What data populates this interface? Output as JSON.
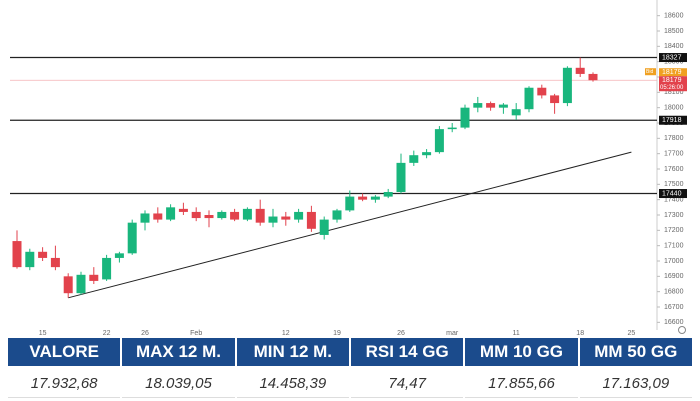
{
  "chart_data": {
    "type": "candlestick",
    "categories": [
      null,
      null,
      "15",
      null,
      null,
      null,
      null,
      "22",
      null,
      null,
      "26",
      null,
      null,
      null,
      "Feb",
      null,
      null,
      null,
      null,
      null,
      null,
      "12",
      null,
      null,
      null,
      "19",
      null,
      null,
      null,
      null,
      "26",
      null,
      null,
      null,
      "mar",
      null,
      null,
      null,
      null,
      "11",
      null,
      null,
      null,
      null,
      "18",
      null,
      null,
      null,
      "25",
      null
    ],
    "open": [
      17130,
      16960,
      17060,
      17020,
      16900,
      16790,
      16910,
      16880,
      17020,
      17050,
      17250,
      17310,
      17270,
      17340,
      17320,
      17300,
      17280,
      17320,
      17270,
      17340,
      17250,
      17290,
      17270,
      17320,
      17170,
      17270,
      17330,
      17420,
      17400,
      17420,
      17450,
      17640,
      17690,
      17710,
      17860,
      17870,
      18000,
      18030,
      18000,
      17950,
      17990,
      18130,
      18080,
      18030,
      18260,
      18220,
      null,
      null,
      null,
      null
    ],
    "high": [
      17200,
      17080,
      17090,
      17100,
      16920,
      16930,
      16960,
      17040,
      17060,
      17270,
      17330,
      17350,
      17370,
      17380,
      17350,
      17330,
      17330,
      17340,
      17350,
      17400,
      17340,
      17320,
      17340,
      17360,
      17290,
      17340,
      17460,
      17440,
      17430,
      17470,
      17700,
      17720,
      17730,
      17880,
      17900,
      18020,
      18070,
      18040,
      18030,
      18030,
      18140,
      18150,
      18090,
      18270,
      18327,
      18230,
      null,
      null,
      null,
      null
    ],
    "low": [
      16950,
      16940,
      17000,
      16940,
      16760,
      16780,
      16850,
      16870,
      16990,
      17040,
      17200,
      17250,
      17260,
      17300,
      17260,
      17220,
      17270,
      17260,
      17260,
      17230,
      17220,
      17230,
      17250,
      17190,
      17140,
      17250,
      17320,
      17390,
      17380,
      17410,
      17440,
      17620,
      17670,
      17700,
      17840,
      17860,
      17970,
      17980,
      17960,
      17920,
      17970,
      18060,
      17960,
      18010,
      18200,
      18170,
      null,
      null,
      null,
      null
    ],
    "close": [
      16960,
      17060,
      17020,
      16960,
      16790,
      16910,
      16870,
      17020,
      17050,
      17250,
      17310,
      17270,
      17350,
      17320,
      17280,
      17280,
      17320,
      17270,
      17340,
      17250,
      17290,
      17270,
      17320,
      17210,
      17270,
      17330,
      17420,
      17400,
      17420,
      17450,
      17640,
      17690,
      17710,
      17860,
      17870,
      18000,
      18030,
      18000,
      18020,
      17990,
      18130,
      18080,
      18030,
      18260,
      18220,
      18179,
      null,
      null,
      null,
      null
    ],
    "up_color": "#19b67d",
    "down_color": "#e2424c",
    "ylim": [
      16550,
      18650
    ],
    "yticks": [
      16600,
      16700,
      16800,
      16900,
      17000,
      17100,
      17200,
      17300,
      17400,
      17500,
      17600,
      17700,
      17800,
      17900,
      18000,
      18100,
      18200,
      18300,
      18400,
      18500,
      18600
    ],
    "grid": false,
    "levels": [
      18327,
      17918,
      17440
    ],
    "trendline": {
      "start": {
        "index": 4,
        "value": 16760
      },
      "end": {
        "index": 48,
        "value": 17710
      }
    },
    "price_tags": [
      {
        "label": "Bid",
        "value": 18179,
        "color": "#f0a020"
      },
      {
        "value": 18179,
        "countdown": "05:26:00",
        "color": "#e2424c"
      }
    ]
  },
  "table": {
    "header": [
      "VALORE",
      "MAX 12 M.",
      "MIN 12 M.",
      "RSI 14 GG",
      "MM 10 GG",
      "MM 50 GG"
    ],
    "rows": [
      [
        "17.932,68",
        "18.039,05",
        "14.458,39",
        "74,47",
        "17.855,66",
        "17.163,09"
      ]
    ]
  }
}
